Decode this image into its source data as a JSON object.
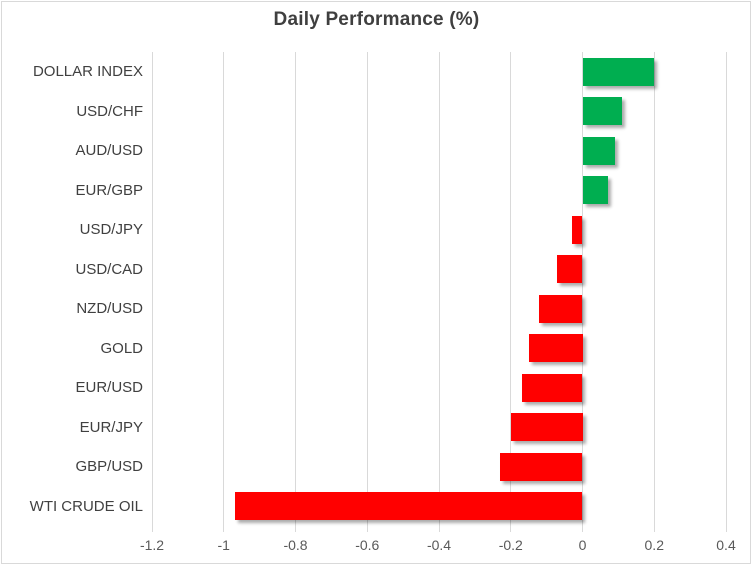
{
  "chart_data": {
    "type": "bar",
    "orientation": "horizontal",
    "title": "Daily Performance (%)",
    "categories": [
      "DOLLAR INDEX",
      "USD/CHF",
      "AUD/USD",
      "EUR/GBP",
      "USD/JPY",
      "USD/CAD",
      "NZD/USD",
      "GOLD",
      "EUR/USD",
      "EUR/JPY",
      "GBP/USD",
      "WTI CRUDE OIL"
    ],
    "values": [
      0.2,
      0.11,
      0.09,
      0.07,
      -0.03,
      -0.07,
      -0.12,
      -0.15,
      -0.17,
      -0.2,
      -0.23,
      -0.97
    ],
    "xlim": [
      -1.2,
      0.4
    ],
    "xticks": [
      -1.2,
      -1,
      -0.8,
      -0.6,
      -0.4,
      -0.2,
      0,
      0.2,
      0.4
    ],
    "xtick_labels": [
      "-1.2",
      "-1",
      "-0.8",
      "-0.6",
      "-0.4",
      "-0.2",
      "0",
      "0.2",
      "0.4"
    ],
    "grid": true,
    "legend": false,
    "xlabel": "",
    "ylabel": ""
  },
  "colors": {
    "positive": "#00AE50",
    "negative": "#FF0000",
    "gridline": "#D9D9D9",
    "border": "#D9D9D9",
    "title_text": "#3F3F3F",
    "category_text": "#404040",
    "tick_text": "#595959",
    "background": "#FFFFFF"
  }
}
